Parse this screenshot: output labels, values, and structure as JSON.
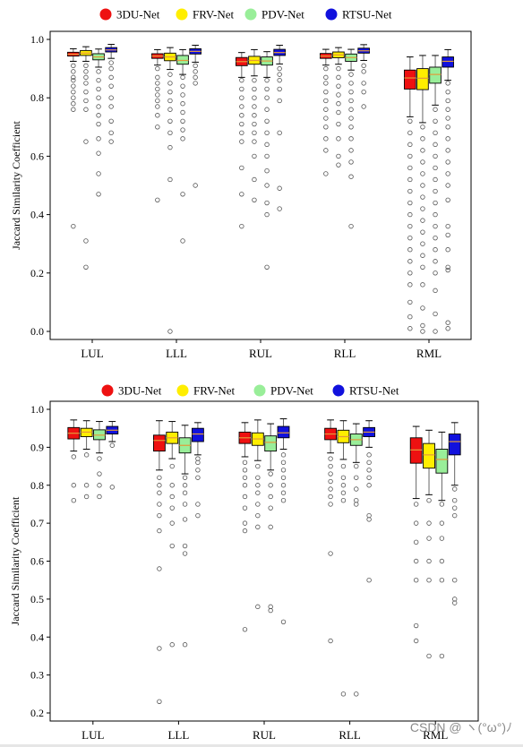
{
  "chart_data": [
    {
      "type": "box",
      "ylabel": "Jaccard Similarity Coefficient",
      "ylim": [
        0.0,
        1.0
      ],
      "yticks": [
        "0.0",
        "0.2",
        "0.4",
        "0.6",
        "0.8",
        "1.0"
      ],
      "categories": [
        "LUL",
        "LLL",
        "RUL",
        "RLL",
        "RML"
      ],
      "legend": {
        "position": "top",
        "entries": [
          "3DU-Net",
          "FRV-Net",
          "PDV-Net",
          "RTSU-Net"
        ]
      },
      "series": [
        {
          "name": "3DU-Net",
          "color": "#ee1111",
          "boxes": [
            {
              "q1": 0.943,
              "med": 0.949,
              "q3": 0.956,
              "wlo": 0.925,
              "whi": 0.968,
              "outliers": [
                0.91,
                0.89,
                0.87,
                0.86,
                0.84,
                0.82,
                0.8,
                0.78,
                0.76,
                0.36
              ]
            },
            {
              "q1": 0.935,
              "med": 0.943,
              "q3": 0.951,
              "wlo": 0.912,
              "whi": 0.965,
              "outliers": [
                0.9,
                0.87,
                0.85,
                0.83,
                0.81,
                0.79,
                0.77,
                0.74,
                0.7,
                0.45
              ]
            },
            {
              "q1": 0.91,
              "med": 0.924,
              "q3": 0.938,
              "wlo": 0.87,
              "whi": 0.955,
              "outliers": [
                0.86,
                0.83,
                0.8,
                0.77,
                0.74,
                0.71,
                0.68,
                0.65,
                0.56,
                0.47,
                0.36
              ]
            },
            {
              "q1": 0.935,
              "med": 0.943,
              "q3": 0.952,
              "wlo": 0.912,
              "whi": 0.966,
              "outliers": [
                0.9,
                0.87,
                0.85,
                0.82,
                0.79,
                0.76,
                0.73,
                0.7,
                0.66,
                0.62,
                0.54
              ]
            },
            {
              "q1": 0.83,
              "med": 0.868,
              "q3": 0.895,
              "wlo": 0.735,
              "whi": 0.94,
              "outliers": [
                0.72,
                0.68,
                0.64,
                0.6,
                0.56,
                0.52,
                0.48,
                0.44,
                0.4,
                0.36,
                0.32,
                0.28,
                0.24,
                0.2,
                0.16,
                0.1,
                0.05,
                0.01
              ]
            }
          ]
        },
        {
          "name": "FRV-Net",
          "color": "#ffee00",
          "boxes": [
            {
              "q1": 0.945,
              "med": 0.953,
              "q3": 0.962,
              "wlo": 0.925,
              "whi": 0.975,
              "outliers": [
                0.91,
                0.89,
                0.87,
                0.85,
                0.82,
                0.79,
                0.76,
                0.65,
                0.31,
                0.22
              ]
            },
            {
              "q1": 0.927,
              "med": 0.94,
              "q3": 0.953,
              "wlo": 0.897,
              "whi": 0.972,
              "outliers": [
                0.88,
                0.85,
                0.82,
                0.79,
                0.76,
                0.72,
                0.68,
                0.63,
                0.52,
                0.0
              ]
            },
            {
              "q1": 0.915,
              "med": 0.928,
              "q3": 0.942,
              "wlo": 0.875,
              "whi": 0.965,
              "outliers": [
                0.86,
                0.83,
                0.8,
                0.77,
                0.74,
                0.71,
                0.68,
                0.65,
                0.6,
                0.52,
                0.45
              ]
            },
            {
              "q1": 0.937,
              "med": 0.947,
              "q3": 0.957,
              "wlo": 0.915,
              "whi": 0.972,
              "outliers": [
                0.9,
                0.87,
                0.84,
                0.81,
                0.78,
                0.75,
                0.71,
                0.66,
                0.6,
                0.57
              ]
            },
            {
              "q1": 0.828,
              "med": 0.867,
              "q3": 0.9,
              "wlo": 0.715,
              "whi": 0.945,
              "outliers": [
                0.7,
                0.66,
                0.62,
                0.58,
                0.54,
                0.5,
                0.46,
                0.42,
                0.38,
                0.34,
                0.3,
                0.26,
                0.22,
                0.16,
                0.08,
                0.02,
                0.0
              ]
            }
          ]
        },
        {
          "name": "PDV-Net",
          "color": "#99ee99",
          "boxes": [
            {
              "q1": 0.93,
              "med": 0.94,
              "q3": 0.951,
              "wlo": 0.905,
              "whi": 0.967,
              "outliers": [
                0.89,
                0.86,
                0.83,
                0.8,
                0.77,
                0.74,
                0.71,
                0.66,
                0.61,
                0.54,
                0.47
              ]
            },
            {
              "q1": 0.915,
              "med": 0.928,
              "q3": 0.945,
              "wlo": 0.88,
              "whi": 0.965,
              "outliers": [
                0.87,
                0.84,
                0.81,
                0.78,
                0.75,
                0.72,
                0.69,
                0.66,
                0.47,
                0.31
              ]
            },
            {
              "q1": 0.912,
              "med": 0.926,
              "q3": 0.94,
              "wlo": 0.87,
              "whi": 0.958,
              "outliers": [
                0.86,
                0.83,
                0.8,
                0.76,
                0.72,
                0.68,
                0.64,
                0.6,
                0.55,
                0.5,
                0.44,
                0.4,
                0.22
              ]
            },
            {
              "q1": 0.925,
              "med": 0.938,
              "q3": 0.95,
              "wlo": 0.895,
              "whi": 0.966,
              "outliers": [
                0.88,
                0.85,
                0.82,
                0.79,
                0.76,
                0.73,
                0.7,
                0.66,
                0.62,
                0.58,
                0.53,
                0.36
              ]
            },
            {
              "q1": 0.85,
              "med": 0.88,
              "q3": 0.905,
              "wlo": 0.775,
              "whi": 0.945,
              "outliers": [
                0.76,
                0.72,
                0.68,
                0.64,
                0.6,
                0.56,
                0.52,
                0.48,
                0.44,
                0.4,
                0.36,
                0.32,
                0.28,
                0.24,
                0.2,
                0.14,
                0.06,
                0.0
              ]
            }
          ]
        },
        {
          "name": "RTSU-Net",
          "color": "#1111dd",
          "boxes": [
            {
              "q1": 0.957,
              "med": 0.964,
              "q3": 0.972,
              "wlo": 0.935,
              "whi": 0.983,
              "outliers": [
                0.92,
                0.9,
                0.87,
                0.84,
                0.8,
                0.77,
                0.72,
                0.68,
                0.65
              ]
            },
            {
              "q1": 0.95,
              "med": 0.959,
              "q3": 0.968,
              "wlo": 0.922,
              "whi": 0.98,
              "outliers": [
                0.91,
                0.89,
                0.87,
                0.85,
                0.5
              ]
            },
            {
              "q1": 0.945,
              "med": 0.955,
              "q3": 0.966,
              "wlo": 0.916,
              "whi": 0.98,
              "outliers": [
                0.9,
                0.88,
                0.86,
                0.83,
                0.79,
                0.68,
                0.49,
                0.42
              ]
            },
            {
              "q1": 0.953,
              "med": 0.961,
              "q3": 0.97,
              "wlo": 0.928,
              "whi": 0.982,
              "outliers": [
                0.91,
                0.89,
                0.85,
                0.82,
                0.77
              ]
            },
            {
              "q1": 0.905,
              "med": 0.925,
              "q3": 0.94,
              "wlo": 0.86,
              "whi": 0.965,
              "outliers": [
                0.85,
                0.82,
                0.79,
                0.76,
                0.73,
                0.7,
                0.66,
                0.62,
                0.58,
                0.54,
                0.5,
                0.45,
                0.36,
                0.33,
                0.28,
                0.22,
                0.21,
                0.03,
                0.01
              ]
            }
          ]
        }
      ]
    },
    {
      "type": "box",
      "ylabel": "Jaccard Similarity Coefficient",
      "ylim": [
        0.2,
        1.0
      ],
      "yticks": [
        "0.2",
        "0.3",
        "0.4",
        "0.5",
        "0.6",
        "0.7",
        "0.8",
        "0.9",
        "1.0"
      ],
      "categories": [
        "LUL",
        "LLL",
        "RUL",
        "RLL",
        "RML"
      ],
      "legend": {
        "position": "top",
        "entries": [
          "3DU-Net",
          "FRV-Net",
          "PDV-Net",
          "RTSU-Net"
        ]
      },
      "series": [
        {
          "name": "3DU-Net",
          "color": "#ee1111",
          "boxes": [
            {
              "q1": 0.922,
              "med": 0.937,
              "q3": 0.952,
              "wlo": 0.89,
              "whi": 0.972,
              "outliers": [
                0.875,
                0.8,
                0.76
              ]
            },
            {
              "q1": 0.89,
              "med": 0.918,
              "q3": 0.932,
              "wlo": 0.84,
              "whi": 0.97,
              "outliers": [
                0.82,
                0.8,
                0.78,
                0.75,
                0.72,
                0.68,
                0.58,
                0.37,
                0.23
              ]
            },
            {
              "q1": 0.91,
              "med": 0.925,
              "q3": 0.94,
              "wlo": 0.875,
              "whi": 0.965,
              "outliers": [
                0.86,
                0.84,
                0.82,
                0.8,
                0.77,
                0.74,
                0.7,
                0.68,
                0.42
              ]
            },
            {
              "q1": 0.92,
              "med": 0.935,
              "q3": 0.95,
              "wlo": 0.885,
              "whi": 0.972,
              "outliers": [
                0.87,
                0.85,
                0.83,
                0.81,
                0.79,
                0.77,
                0.75,
                0.62,
                0.39
              ]
            },
            {
              "q1": 0.858,
              "med": 0.893,
              "q3": 0.925,
              "wlo": 0.765,
              "whi": 0.955,
              "outliers": [
                0.75,
                0.7,
                0.65,
                0.6,
                0.55,
                0.43,
                0.39
              ]
            }
          ]
        },
        {
          "name": "FRV-Net",
          "color": "#ffee00",
          "boxes": [
            {
              "q1": 0.928,
              "med": 0.94,
              "q3": 0.95,
              "wlo": 0.895,
              "whi": 0.97,
              "outliers": [
                0.88,
                0.8,
                0.77
              ]
            },
            {
              "q1": 0.91,
              "med": 0.925,
              "q3": 0.94,
              "wlo": 0.87,
              "whi": 0.968,
              "outliers": [
                0.85,
                0.8,
                0.77,
                0.74,
                0.7,
                0.64,
                0.38
              ]
            },
            {
              "q1": 0.905,
              "med": 0.922,
              "q3": 0.938,
              "wlo": 0.865,
              "whi": 0.972,
              "outliers": [
                0.85,
                0.82,
                0.8,
                0.78,
                0.75,
                0.72,
                0.69,
                0.48
              ]
            },
            {
              "q1": 0.912,
              "med": 0.928,
              "q3": 0.945,
              "wlo": 0.868,
              "whi": 0.97,
              "outliers": [
                0.85,
                0.82,
                0.8,
                0.78,
                0.76,
                0.25
              ]
            },
            {
              "q1": 0.845,
              "med": 0.88,
              "q3": 0.91,
              "wlo": 0.775,
              "whi": 0.945,
              "outliers": [
                0.76,
                0.7,
                0.66,
                0.6,
                0.55,
                0.35
              ]
            }
          ]
        },
        {
          "name": "PDV-Net",
          "color": "#99ee99",
          "boxes": [
            {
              "q1": 0.92,
              "med": 0.932,
              "q3": 0.946,
              "wlo": 0.885,
              "whi": 0.968,
              "outliers": [
                0.87,
                0.83,
                0.8,
                0.77
              ]
            },
            {
              "q1": 0.885,
              "med": 0.905,
              "q3": 0.925,
              "wlo": 0.83,
              "whi": 0.958,
              "outliers": [
                0.82,
                0.8,
                0.78,
                0.75,
                0.71,
                0.64,
                0.62,
                0.38
              ]
            },
            {
              "q1": 0.89,
              "med": 0.913,
              "q3": 0.93,
              "wlo": 0.84,
              "whi": 0.962,
              "outliers": [
                0.83,
                0.8,
                0.77,
                0.74,
                0.69,
                0.48,
                0.47
              ]
            },
            {
              "q1": 0.905,
              "med": 0.92,
              "q3": 0.935,
              "wlo": 0.86,
              "whi": 0.962,
              "outliers": [
                0.85,
                0.82,
                0.79,
                0.76,
                0.75,
                0.25
              ]
            },
            {
              "q1": 0.832,
              "med": 0.868,
              "q3": 0.895,
              "wlo": 0.76,
              "whi": 0.94,
              "outliers": [
                0.75,
                0.7,
                0.66,
                0.6,
                0.55,
                0.35
              ]
            }
          ]
        },
        {
          "name": "RTSU-Net",
          "color": "#1111dd",
          "boxes": [
            {
              "q1": 0.935,
              "med": 0.945,
              "q3": 0.955,
              "wlo": 0.915,
              "whi": 0.968,
              "outliers": [
                0.905,
                0.795
              ]
            },
            {
              "q1": 0.915,
              "med": 0.935,
              "q3": 0.95,
              "wlo": 0.88,
              "whi": 0.965,
              "outliers": [
                0.87,
                0.86,
                0.84,
                0.82,
                0.75,
                0.72
              ]
            },
            {
              "q1": 0.925,
              "med": 0.938,
              "q3": 0.955,
              "wlo": 0.895,
              "whi": 0.975,
              "outliers": [
                0.88,
                0.86,
                0.84,
                0.82,
                0.8,
                0.78,
                0.76,
                0.44
              ]
            },
            {
              "q1": 0.928,
              "med": 0.94,
              "q3": 0.952,
              "wlo": 0.9,
              "whi": 0.97,
              "outliers": [
                0.88,
                0.86,
                0.84,
                0.82,
                0.8,
                0.72,
                0.71,
                0.55
              ]
            },
            {
              "q1": 0.88,
              "med": 0.915,
              "q3": 0.935,
              "wlo": 0.8,
              "whi": 0.965,
              "outliers": [
                0.79,
                0.76,
                0.74,
                0.72,
                0.55,
                0.5,
                0.49
              ]
            }
          ]
        }
      ]
    }
  ],
  "watermark": "CSDN @ ヽ(°ω°)ﾉ"
}
